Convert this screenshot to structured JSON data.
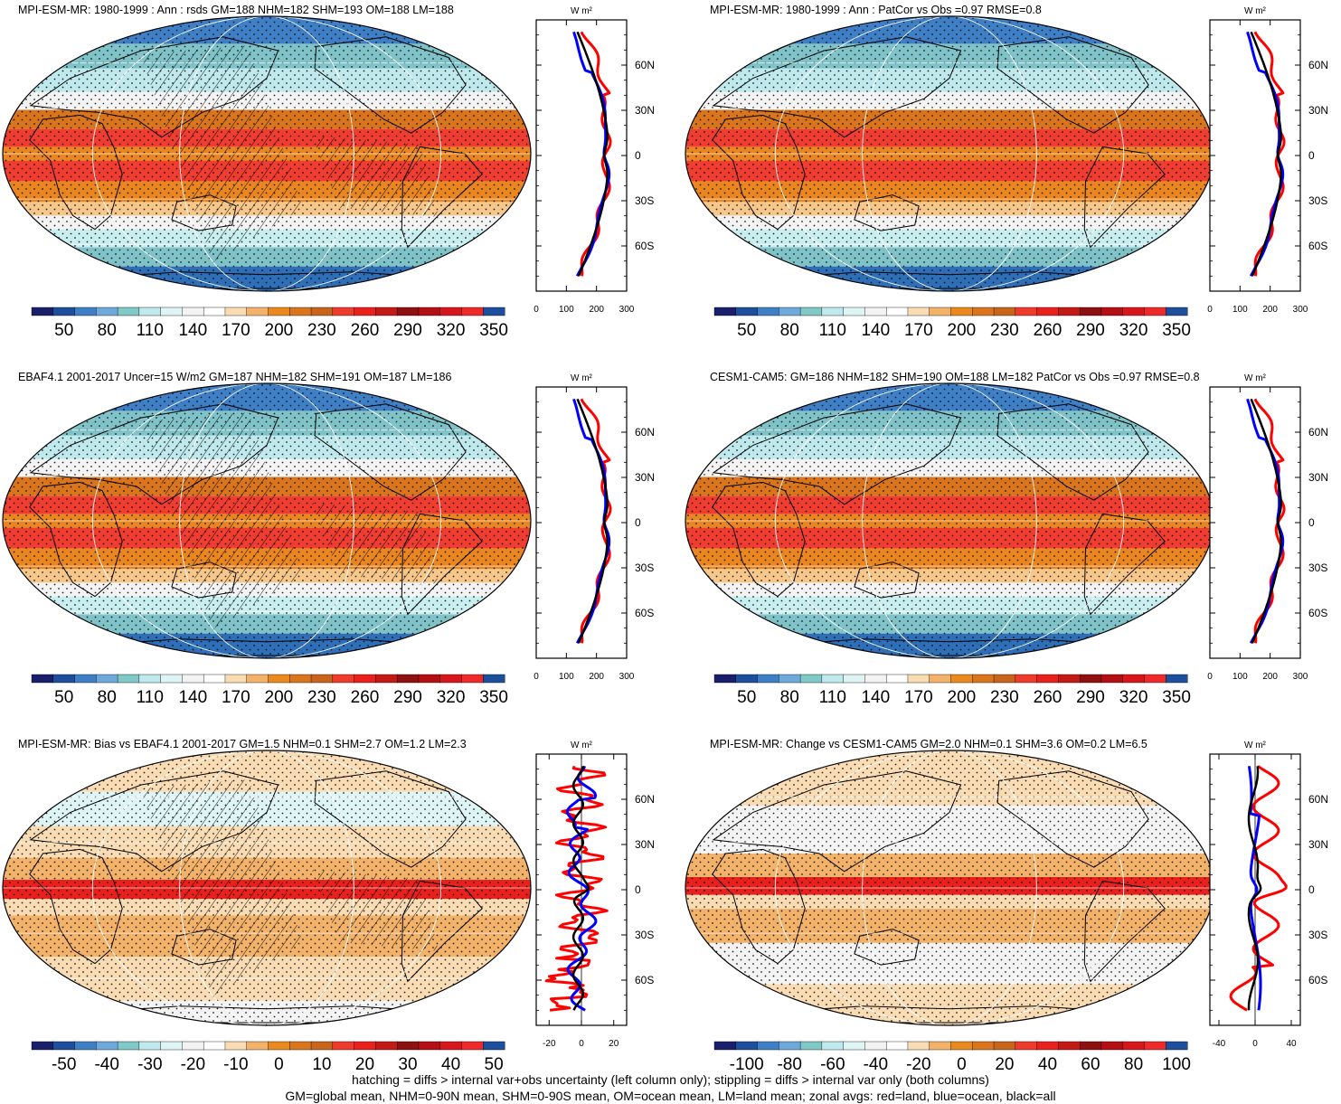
{
  "panels": [
    {
      "id": "p1",
      "title": "MPI-ESM-MR: 1980-1999 : Ann : rsds GM=188 NHM=182 SHM=193 OM=188 LM=188",
      "map_kind": "clim",
      "hatch": true,
      "colorbar": {
        "labels": [
          "50",
          "80",
          "110",
          "140",
          "170",
          "200",
          "230",
          "260",
          "290",
          "320",
          "350"
        ],
        "palette": "clim"
      },
      "profile": {
        "unit": "W m²",
        "xticks": [
          "0",
          "100",
          "200",
          "300"
        ],
        "xlim": [
          0,
          300
        ],
        "yticks": [
          "60N",
          "30N",
          "0",
          "30S",
          "60S"
        ],
        "kind": "clim"
      }
    },
    {
      "id": "p2",
      "title": "MPI-ESM-MR: 1980-1999 : Ann : PatCor vs Obs =0.97 RMSE=0.8",
      "map_kind": "clim",
      "hatch": false,
      "colorbar": {
        "labels": [
          "50",
          "80",
          "110",
          "140",
          "170",
          "200",
          "230",
          "260",
          "290",
          "320",
          "350"
        ],
        "palette": "clim"
      },
      "profile": {
        "unit": "W m²",
        "xticks": [
          "0",
          "100",
          "200",
          "300"
        ],
        "xlim": [
          0,
          300
        ],
        "yticks": [
          "60N",
          "30N",
          "0",
          "30S",
          "60S"
        ],
        "kind": "clim"
      }
    },
    {
      "id": "p3",
      "title": "EBAF4.1 2001-2017 Uncer=15 W/m2 GM=187 NHM=182 SHM=191 OM=187 LM=186",
      "map_kind": "clim",
      "hatch": true,
      "colorbar": {
        "labels": [
          "50",
          "80",
          "110",
          "140",
          "170",
          "200",
          "230",
          "260",
          "290",
          "320",
          "350"
        ],
        "palette": "clim"
      },
      "profile": {
        "unit": "W m²",
        "xticks": [
          "0",
          "100",
          "200",
          "300"
        ],
        "xlim": [
          0,
          300
        ],
        "yticks": [
          "60N",
          "30N",
          "0",
          "30S",
          "60S"
        ],
        "kind": "clim"
      }
    },
    {
      "id": "p4",
      "title": "CESM1-CAM5: GM=186 NHM=182 SHM=190 OM=188 LM=182 PatCor vs Obs =0.97 RMSE=0.8",
      "map_kind": "clim",
      "hatch": false,
      "colorbar": {
        "labels": [
          "50",
          "80",
          "110",
          "140",
          "170",
          "200",
          "230",
          "260",
          "290",
          "320",
          "350"
        ],
        "palette": "clim"
      },
      "profile": {
        "unit": "W m²",
        "xticks": [
          "0",
          "100",
          "200",
          "300"
        ],
        "xlim": [
          0,
          300
        ],
        "yticks": [
          "60N",
          "30N",
          "0",
          "30S",
          "60S"
        ],
        "kind": "clim"
      }
    },
    {
      "id": "p5",
      "title": "MPI-ESM-MR: Bias vs EBAF4.1 2001-2017 GM=1.5 NHM=0.1 SHM=2.7 OM=1.2 LM=2.3",
      "map_kind": "diff",
      "hatch": true,
      "colorbar": {
        "labels": [
          "-50",
          "-40",
          "-30",
          "-20",
          "-10",
          "0",
          "10",
          "20",
          "30",
          "40",
          "50"
        ],
        "palette": "diff"
      },
      "profile": {
        "unit": "W m²",
        "xticks": [
          "-20",
          "0",
          "20"
        ],
        "xlim": [
          -28,
          28
        ],
        "yticks": [
          "60N",
          "30N",
          "0",
          "30S",
          "60S"
        ],
        "kind": "bias"
      }
    },
    {
      "id": "p6",
      "title": "MPI-ESM-MR: Change vs CESM1-CAM5 GM=2.0 NHM=0.1 SHM=3.6 OM=0.2 LM=6.5",
      "map_kind": "change",
      "hatch": false,
      "colorbar": {
        "labels": [
          "-100",
          "-80",
          "-60",
          "-40",
          "-20",
          "0",
          "20",
          "40",
          "60",
          "80",
          "100"
        ],
        "palette": "diff"
      },
      "profile": {
        "unit": "W m²",
        "xticks": [
          "-40",
          "0",
          "40"
        ],
        "xlim": [
          -50,
          50
        ],
        "yticks": [
          "60N",
          "30N",
          "0",
          "30S",
          "60S"
        ],
        "kind": "change"
      }
    }
  ],
  "footer": {
    "line1": "hatching = diffs > internal var+obs uncertainty (left column only); stippling = diffs > internal var only (both columns)",
    "line2": "GM=global mean, NHM=0-90N mean, SHM=0-90S mean, OM=ocean mean, LM=land mean; zonal avgs: red=land, blue=ocean, black=all"
  },
  "palettes": {
    "clim": [
      "#1a1f6b",
      "#1d4f9c",
      "#3f7fc6",
      "#6fa9dc",
      "#80c9c6",
      "#bfe9ec",
      "#dff4f5",
      "#f3f3f3",
      "#ffffff",
      "#f9dcb4",
      "#f2b26a",
      "#ea8a1e",
      "#d9751c",
      "#c9651a",
      "#ee3b2c",
      "#e8211d",
      "#c41a16",
      "#8e1010",
      "#b30f14",
      "#d8171c",
      "#ef2a2a",
      "#1d4f9c"
    ],
    "diff": [
      "#1a1f6b",
      "#1d4f9c",
      "#3f7fc6",
      "#6fa9dc",
      "#80c9c6",
      "#bfe9ec",
      "#dff4f5",
      "#f3f3f3",
      "#ffffff",
      "#f9dcb4",
      "#f2b26a",
      "#ea8a1e",
      "#d9751c",
      "#c9651a",
      "#ee3b2c",
      "#e8211d",
      "#c41a16",
      "#8e1010",
      "#b30f14",
      "#d8171c",
      "#ef2a2a",
      "#1d4f9c"
    ]
  },
  "legend_colors": {
    "land": "#ff0000",
    "ocean": "#0000ff",
    "all": "#000000"
  }
}
